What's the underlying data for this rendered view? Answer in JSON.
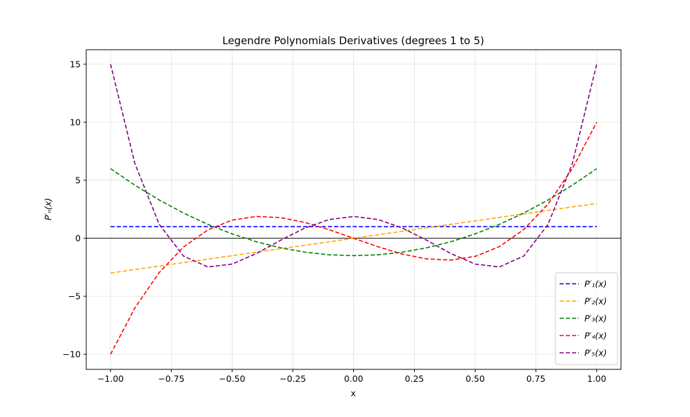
{
  "chart_data": {
    "type": "line",
    "title": "Legendre Polynomials Derivatives (degrees 1 to 5)",
    "x_label": "x",
    "y_label": "P′ₙ(x)",
    "x": [
      -1,
      -0.9,
      -0.8,
      -0.7,
      -0.6,
      -0.5,
      -0.4,
      -0.3,
      -0.2,
      -0.1,
      0,
      0.1,
      0.2,
      0.3,
      0.4,
      0.5,
      0.6,
      0.7,
      0.8,
      0.9,
      1
    ],
    "series": [
      {
        "name": "P′₁(x)",
        "color": "#0000ff",
        "values": [
          1,
          1,
          1,
          1,
          1,
          1,
          1,
          1,
          1,
          1,
          1,
          1,
          1,
          1,
          1,
          1,
          1,
          1,
          1,
          1,
          1
        ]
      },
      {
        "name": "P′₂(x)",
        "color": "#ffa500",
        "values": [
          -3,
          -2.7,
          -2.4,
          -2.1,
          -1.8,
          -1.5,
          -1.2,
          -0.9,
          -0.6,
          -0.3,
          0,
          0.3,
          0.6,
          0.9,
          1.2,
          1.5,
          1.8,
          2.1,
          2.4,
          2.7,
          3
        ]
      },
      {
        "name": "P′₃(x)",
        "color": "#008000",
        "values": [
          6,
          4.575,
          3.3,
          2.175,
          1.2,
          0.375,
          -0.3,
          -0.825,
          -1.2,
          -1.425,
          -1.5,
          -1.425,
          -1.2,
          -0.825,
          -0.3,
          0.375,
          1.2,
          2.175,
          3.3,
          4.575,
          6
        ]
      },
      {
        "name": "P′₄(x)",
        "color": "#ff0000",
        "values": [
          -10,
          -6.0075,
          -2.96,
          -0.7525,
          0.72,
          1.5625,
          1.88,
          1.7775,
          1.36,
          0.7325,
          0,
          -0.7325,
          -1.36,
          -1.7775,
          -1.88,
          -1.5625,
          -0.72,
          0.7525,
          2.96,
          6.0075,
          10
        ]
      },
      {
        "name": "P′₅(x)",
        "color": "#800080",
        "values": [
          15,
          6.446,
          1.203,
          -1.534,
          -2.472,
          -2.227,
          -1.317,
          -0.169,
          0.888,
          1.616,
          1.875,
          1.616,
          0.888,
          -0.169,
          -1.317,
          -2.227,
          -2.472,
          -1.534,
          1.203,
          6.446,
          15
        ]
      }
    ],
    "xlim": [
      -1.1,
      1.1
    ],
    "xticks": [
      {
        "value": -1,
        "label": "−1.00"
      },
      {
        "value": -0.75,
        "label": "−0.75"
      },
      {
        "value": -0.5,
        "label": "−0.50"
      },
      {
        "value": -0.25,
        "label": "−0.25"
      },
      {
        "value": 0,
        "label": "0.00"
      },
      {
        "value": 0.25,
        "label": "0.25"
      },
      {
        "value": 0.5,
        "label": "0.50"
      },
      {
        "value": 0.75,
        "label": "0.75"
      },
      {
        "value": 1,
        "label": "1.00"
      }
    ],
    "ylim": [
      -11.3,
      16.25
    ],
    "yticks": [
      {
        "value": -10,
        "label": "−10"
      },
      {
        "value": -5,
        "label": "−5"
      },
      0,
      5,
      10,
      15
    ],
    "grid": true,
    "zero_line": true,
    "dashed": true,
    "legend": "lower right"
  }
}
